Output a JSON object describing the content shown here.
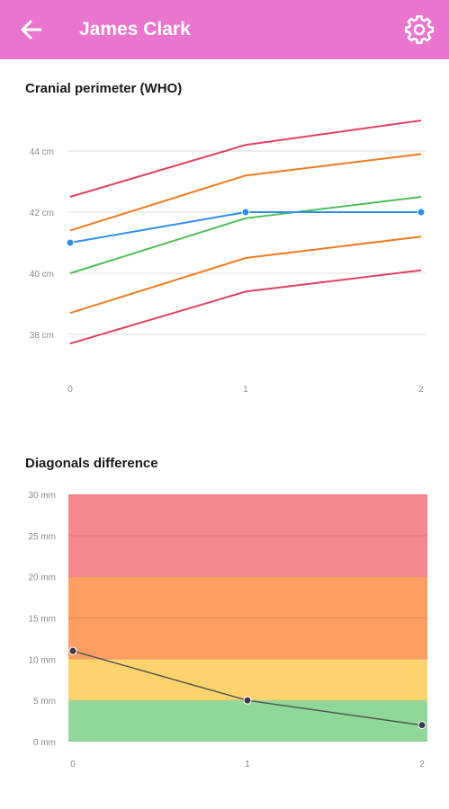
{
  "app": {
    "title": "James Clark",
    "bar_color": "#ea75ce",
    "back_icon": "arrow-left-icon",
    "settings_icon": "gear-icon"
  },
  "charts": {
    "cranial": {
      "title": "Cranial perimeter (WHO)"
    },
    "diagonals": {
      "title": "Diagonals difference"
    }
  },
  "chart_data": [
    {
      "type": "line",
      "title": "Cranial perimeter (WHO)",
      "x": [
        0,
        1,
        2
      ],
      "x_tick_labels": [
        "0",
        "1",
        "2"
      ],
      "y_ticks": [
        38,
        40,
        42,
        44
      ],
      "y_tick_labels": [
        "38 cm",
        "40 cm",
        "42 cm",
        "44 cm"
      ],
      "unit": "cm",
      "grid": "horizontal",
      "series": [
        {
          "values": [
            37.7,
            39.4,
            40.1
          ],
          "color": "#e0415f",
          "markers": false
        },
        {
          "values": [
            38.7,
            40.5,
            41.2
          ],
          "color": "#f07b1e",
          "markers": false
        },
        {
          "values": [
            40.0,
            41.8,
            42.5
          ],
          "color": "#4cbf55",
          "markers": false
        },
        {
          "values": [
            41.4,
            43.2,
            43.9
          ],
          "color": "#f07b1e",
          "markers": false
        },
        {
          "values": [
            42.5,
            44.2,
            45.0
          ],
          "color": "#e0415f",
          "markers": false
        },
        {
          "values": [
            41.0,
            42.0,
            42.0
          ],
          "color": "#2f8ee8",
          "markers": true
        }
      ]
    },
    {
      "type": "line",
      "title": "Diagonals difference",
      "x": [
        0,
        1,
        2
      ],
      "x_tick_labels": [
        "0",
        "1",
        "2"
      ],
      "y_ticks": [
        0,
        5,
        10,
        15,
        20,
        25,
        30
      ],
      "y_tick_labels": [
        "0 mm",
        "5 mm",
        "10 mm",
        "15 mm",
        "20 mm",
        "25 mm",
        "30 mm"
      ],
      "unit": "mm",
      "ylim": [
        0,
        30
      ],
      "bands": [
        {
          "from": 0,
          "to": 5,
          "color": "#8fd89a"
        },
        {
          "from": 5,
          "to": 10,
          "color": "#fdd36e"
        },
        {
          "from": 10,
          "to": 20,
          "color": "#fc9d62"
        },
        {
          "from": 20,
          "to": 30,
          "color": "#f48790"
        }
      ],
      "series": [
        {
          "values": [
            11,
            5,
            2
          ],
          "color": "#555555",
          "markers": true
        }
      ]
    }
  ]
}
